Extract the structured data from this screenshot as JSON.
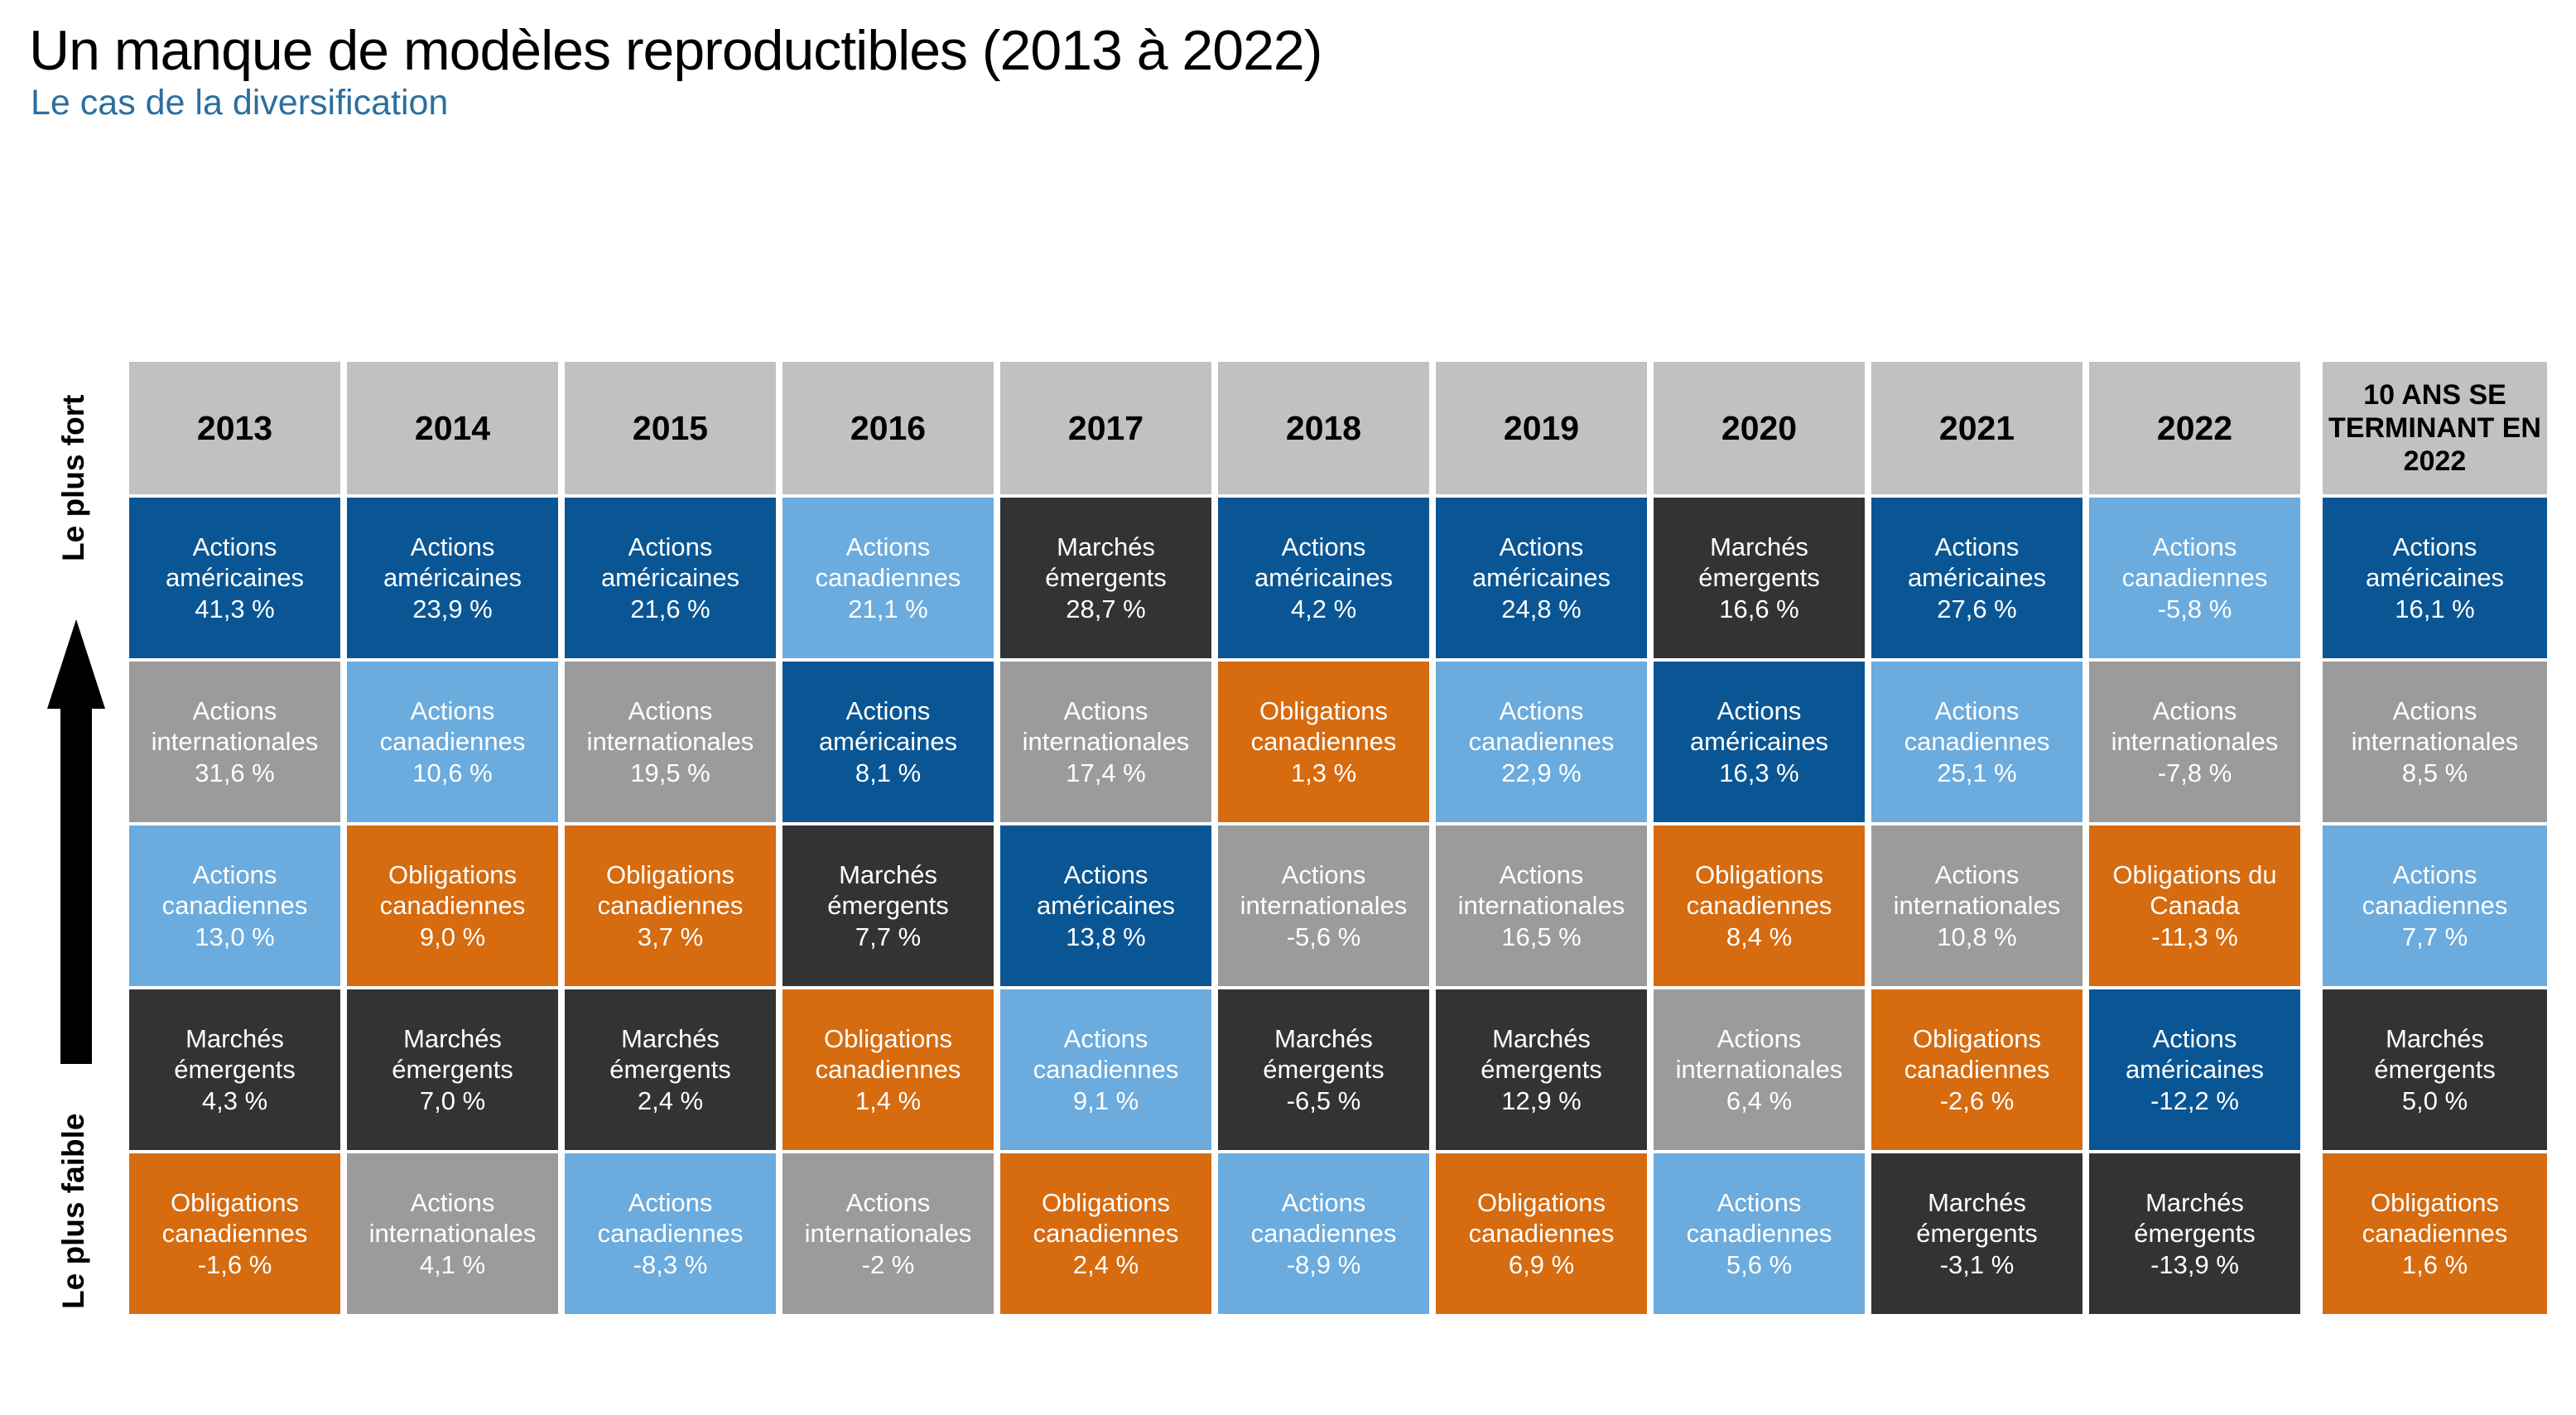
{
  "title": "Un manque de modèles reproductibles (2013 à 2022)",
  "subtitle": "Le cas de la diversification",
  "axis": {
    "top_label": "Le plus fort",
    "bottom_label": "Le plus faible"
  },
  "colors": {
    "us_equity": "#0a5694",
    "canadian_equity": "#6babdd",
    "international_equity": "#9b9b9b",
    "emerging_markets": "#333333",
    "canadian_bonds": "#d66b0f",
    "header_gray": "#c1c1c1",
    "subtitle_blue": "#2b6f9f",
    "cell_text": "#ffffff",
    "arrow_black": "#000000"
  },
  "chart_data": {
    "type": "table",
    "title": "Un manque de modèles reproductibles (2013 à 2022)",
    "subtitle": "Le cas de la diversification",
    "row_order_axis": {
      "top": "Le plus fort",
      "bottom": "Le plus faible"
    },
    "legend": [
      {
        "category": "us_equity",
        "label": "Actions américaines"
      },
      {
        "category": "canadian_equity",
        "label": "Actions canadiennes"
      },
      {
        "category": "international_equity",
        "label": "Actions internationales"
      },
      {
        "category": "emerging_markets",
        "label": "Marchés émergents"
      },
      {
        "category": "canadian_bonds",
        "label": "Obligations canadiennes"
      }
    ],
    "columns": [
      {
        "year": "2013",
        "cells": [
          {
            "name": "Actions américaines",
            "value": "41,3 %",
            "category": "us_equity"
          },
          {
            "name": "Actions internationales",
            "value": "31,6 %",
            "category": "international_equity"
          },
          {
            "name": "Actions canadiennes",
            "value": "13,0 %",
            "category": "canadian_equity"
          },
          {
            "name": "Marchés émergents",
            "value": "4,3 %",
            "category": "emerging_markets"
          },
          {
            "name": "Obligations canadiennes",
            "value": "-1,6 %",
            "category": "canadian_bonds"
          }
        ]
      },
      {
        "year": "2014",
        "cells": [
          {
            "name": "Actions américaines",
            "value": "23,9 %",
            "category": "us_equity"
          },
          {
            "name": "Actions canadiennes",
            "value": "10,6 %",
            "category": "canadian_equity"
          },
          {
            "name": "Obligations canadiennes",
            "value": "9,0 %",
            "category": "canadian_bonds"
          },
          {
            "name": "Marchés émergents",
            "value": "7,0 %",
            "category": "emerging_markets"
          },
          {
            "name": "Actions internationales",
            "value": "4,1 %",
            "category": "international_equity"
          }
        ]
      },
      {
        "year": "2015",
        "cells": [
          {
            "name": "Actions américaines",
            "value": "21,6 %",
            "category": "us_equity"
          },
          {
            "name": "Actions internationales",
            "value": "19,5 %",
            "category": "international_equity"
          },
          {
            "name": "Obligations canadiennes",
            "value": "3,7 %",
            "category": "canadian_bonds"
          },
          {
            "name": "Marchés émergents",
            "value": "2,4 %",
            "category": "emerging_markets"
          },
          {
            "name": "Actions canadiennes",
            "value": "-8,3 %",
            "category": "canadian_equity"
          }
        ]
      },
      {
        "year": "2016",
        "cells": [
          {
            "name": "Actions canadiennes",
            "value": "21,1 %",
            "category": "canadian_equity"
          },
          {
            "name": "Actions américaines",
            "value": "8,1 %",
            "category": "us_equity"
          },
          {
            "name": "Marchés émergents",
            "value": "7,7 %",
            "category": "emerging_markets"
          },
          {
            "name": "Obligations canadiennes",
            "value": "1,4 %",
            "category": "canadian_bonds"
          },
          {
            "name": "Actions internationales",
            "value": "-2 %",
            "category": "international_equity"
          }
        ]
      },
      {
        "year": "2017",
        "cells": [
          {
            "name": "Marchés émergents",
            "value": "28,7 %",
            "category": "emerging_markets"
          },
          {
            "name": "Actions internationales",
            "value": "17,4 %",
            "category": "international_equity"
          },
          {
            "name": "Actions américaines",
            "value": "13,8 %",
            "category": "us_equity"
          },
          {
            "name": "Actions canadiennes",
            "value": "9,1 %",
            "category": "canadian_equity"
          },
          {
            "name": "Obligations canadiennes",
            "value": "2,4 %",
            "category": "canadian_bonds"
          }
        ]
      },
      {
        "year": "2018",
        "cells": [
          {
            "name": "Actions américaines",
            "value": "4,2 %",
            "category": "us_equity"
          },
          {
            "name": "Obligations canadiennes",
            "value": "1,3 %",
            "category": "canadian_bonds"
          },
          {
            "name": "Actions internationales",
            "value": "-5,6 %",
            "category": "international_equity"
          },
          {
            "name": "Marchés émergents",
            "value": "-6,5 %",
            "category": "emerging_markets"
          },
          {
            "name": "Actions canadiennes",
            "value": "-8,9 %",
            "category": "canadian_equity"
          }
        ]
      },
      {
        "year": "2019",
        "cells": [
          {
            "name": "Actions américaines",
            "value": "24,8 %",
            "category": "us_equity"
          },
          {
            "name": "Actions canadiennes",
            "value": "22,9 %",
            "category": "canadian_equity"
          },
          {
            "name": "Actions internationales",
            "value": "16,5 %",
            "category": "international_equity"
          },
          {
            "name": "Marchés émergents",
            "value": "12,9 %",
            "category": "emerging_markets"
          },
          {
            "name": "Obligations canadiennes",
            "value": "6,9 %",
            "category": "canadian_bonds"
          }
        ]
      },
      {
        "year": "2020",
        "cells": [
          {
            "name": "Marchés émergents",
            "value": "16,6 %",
            "category": "emerging_markets"
          },
          {
            "name": "Actions américaines",
            "value": "16,3 %",
            "category": "us_equity"
          },
          {
            "name": "Obligations canadiennes",
            "value": "8,4 %",
            "category": "canadian_bonds"
          },
          {
            "name": "Actions internationales",
            "value": "6,4 %",
            "category": "international_equity"
          },
          {
            "name": "Actions canadiennes",
            "value": "5,6 %",
            "category": "canadian_equity"
          }
        ]
      },
      {
        "year": "2021",
        "cells": [
          {
            "name": "Actions américaines",
            "value": "27,6 %",
            "category": "us_equity"
          },
          {
            "name": "Actions canadiennes",
            "value": "25,1 %",
            "category": "canadian_equity"
          },
          {
            "name": "Actions internationales",
            "value": "10,8 %",
            "category": "international_equity"
          },
          {
            "name": "Obligations canadiennes",
            "value": "-2,6 %",
            "category": "canadian_bonds"
          },
          {
            "name": "Marchés émergents",
            "value": "-3,1 %",
            "category": "emerging_markets"
          }
        ]
      },
      {
        "year": "2022",
        "cells": [
          {
            "name": "Actions canadiennes",
            "value": "-5,8 %",
            "category": "canadian_equity"
          },
          {
            "name": "Actions internationales",
            "value": "-7,8 %",
            "category": "international_equity"
          },
          {
            "name": "Obligations du Canada",
            "value": "-11,3 %",
            "category": "canadian_bonds"
          },
          {
            "name": "Actions américaines",
            "value": "-12,2 %",
            "category": "us_equity"
          },
          {
            "name": "Marchés émergents",
            "value": "-13,9 %",
            "category": "emerging_markets"
          }
        ]
      },
      {
        "year": "10 ANS SE TERMINANT EN 2022",
        "cells": [
          {
            "name": "Actions américaines",
            "value": "16,1 %",
            "category": "us_equity"
          },
          {
            "name": "Actions internationales",
            "value": "8,5 %",
            "category": "international_equity"
          },
          {
            "name": "Actions canadiennes",
            "value": "7,7 %",
            "category": "canadian_equity"
          },
          {
            "name": "Marchés émergents",
            "value": "5,0 %",
            "category": "emerging_markets"
          },
          {
            "name": "Obligations canadiennes",
            "value": "1,6 %",
            "category": "canadian_bonds"
          }
        ]
      }
    ]
  }
}
